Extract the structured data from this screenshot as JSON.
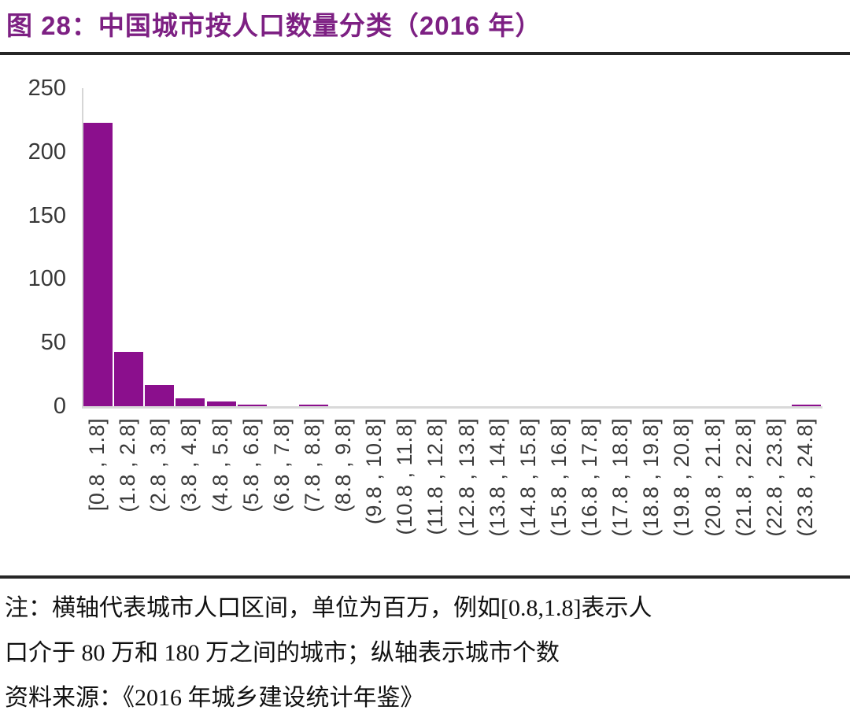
{
  "header": {
    "title": "图 28：中国城市按人口数量分类（2016 年）"
  },
  "colors": {
    "title_text": "#7D2083",
    "bar": "#8B0F8D",
    "axis_line": "#D9D9D9",
    "tick_text": "#3A3A3A",
    "divider": "#262626",
    "note_text": "#111111"
  },
  "chart_data": {
    "type": "bar",
    "title": "图 28：中国城市按人口数量分类（2016 年）",
    "categories": [
      "[0.8 , 1.8]",
      "(1.8 , 2.8]",
      "(2.8 , 3.8]",
      "(3.8 , 4.8]",
      "(4.8 , 5.8]",
      "(5.8 , 6.8]",
      "(6.8 , 7.8]",
      "(7.8 , 8.8]",
      "(8.8 , 9.8]",
      "(9.8 , 10.8]",
      "(10.8 , 11.8]",
      "(11.8 , 12.8]",
      "(12.8 , 13.8]",
      "(13.8 , 14.8]",
      "(14.8 , 15.8]",
      "(15.8 , 16.8]",
      "(16.8 , 17.8]",
      "(17.8 , 18.8]",
      "(18.8 , 19.8]",
      "(19.8 , 20.8]",
      "(20.8 , 21.8]",
      "(21.8 , 22.8]",
      "(22.8 , 23.8]",
      "(23.8 , 24.8]"
    ],
    "values": [
      223,
      43,
      17,
      6,
      4,
      1,
      0,
      1,
      0,
      0,
      0,
      0,
      0,
      0,
      0,
      0,
      0,
      0,
      0,
      0,
      0,
      0,
      0,
      1
    ],
    "ylim": [
      0,
      250
    ],
    "yticks": [
      0,
      50,
      100,
      150,
      200,
      250
    ],
    "bar_color": "#8B0F8D",
    "xlabel": "",
    "ylabel": "",
    "grid": false,
    "legend": null
  },
  "notes": {
    "lines": [
      "注：横轴代表城市人口区间，单位为百万，例如[0.8,1.8]表示人",
      "口介于 80 万和 180 万之间的城市；纵轴表示城市个数",
      "资料来源：《2016 年城乡建设统计年鉴》"
    ]
  }
}
